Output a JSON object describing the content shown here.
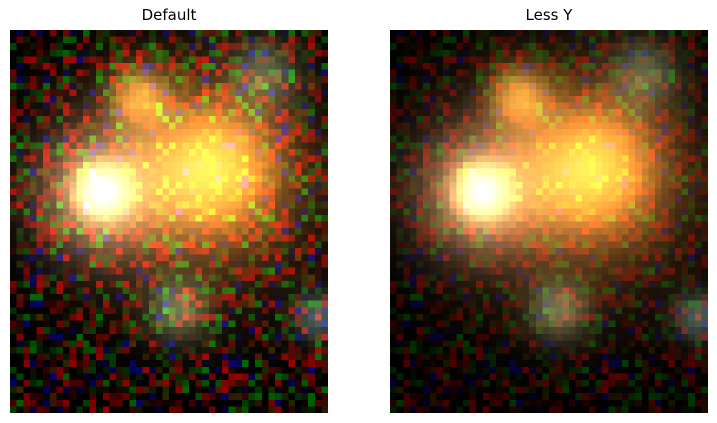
{
  "panels": [
    {
      "title": "Default",
      "variant": "default"
    },
    {
      "title": "Less Y",
      "variant": "less_y"
    }
  ],
  "colors": {
    "background": "#000000",
    "central_galaxy": "#f5a040",
    "bright_star": "#f2ff90",
    "noise_red": "#b01010",
    "noise_green": "#106030",
    "noise_blue": "#101860"
  }
}
